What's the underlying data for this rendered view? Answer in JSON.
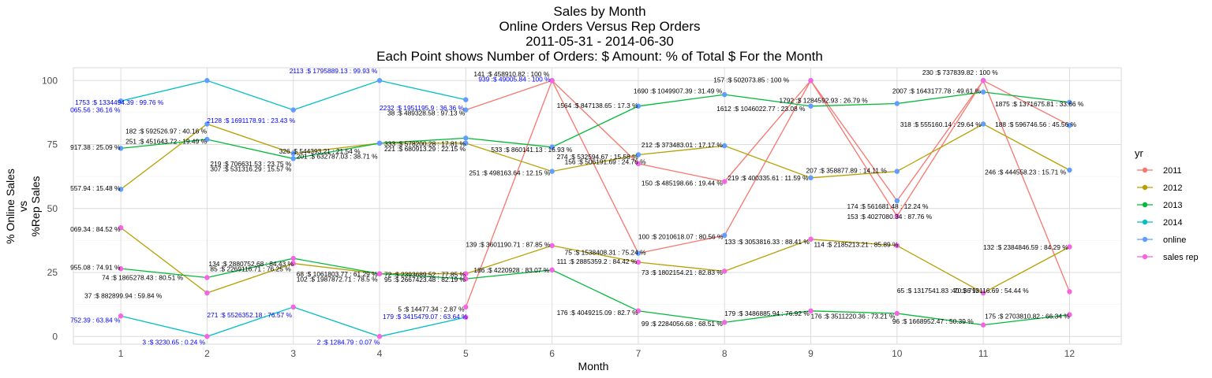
{
  "chart_data": {
    "type": "line",
    "title": [
      "Sales by Month",
      "Online Orders Versus Rep Orders",
      "2011-05-31  -  2014-06-30",
      "Each Point shows Number of Orders: $ Amount: % of Total $ For the Month"
    ],
    "xlabel": "Month",
    "ylabel": [
      "% Online Sales",
      "vs",
      "%Rep Sales"
    ],
    "xlim": [
      0.45,
      12.6
    ],
    "ylim": [
      -3,
      105
    ],
    "x_ticks": [
      1,
      2,
      3,
      4,
      5,
      6,
      7,
      8,
      9,
      10,
      11,
      12
    ],
    "y_ticks": [
      0,
      25,
      50,
      75,
      100
    ],
    "grid": true,
    "legend": {
      "position": "right",
      "title": "yr",
      "entries": [
        {
          "name": "2011",
          "color": "#f8766d"
        },
        {
          "name": "2012",
          "color": "#b79f00"
        },
        {
          "name": "2013",
          "color": "#00ba38"
        },
        {
          "name": "2014",
          "color": "#00bfc4"
        },
        {
          "name": "online",
          "color": "#619cff"
        },
        {
          "name": "sales rep",
          "color": "#f564e3"
        }
      ]
    },
    "series": [
      {
        "name": "2011",
        "color": "#f8766d",
        "x": [
          5,
          6,
          7,
          8,
          9,
          10,
          11,
          12
        ],
        "y": [
          88.5,
          100,
          32.5,
          39.5,
          100,
          53,
          100,
          82.5
        ]
      },
      {
        "name": "2011",
        "color": "#f8766d",
        "x": [
          5,
          6,
          7,
          8,
          9,
          10,
          11,
          12
        ],
        "y": [
          11.5,
          100,
          67.5,
          60.5,
          100,
          47,
          100,
          17.5
        ]
      },
      {
        "name": "2012",
        "color": "#b79f00",
        "x": [
          1,
          2,
          3,
          4,
          5,
          6,
          7,
          8,
          9,
          10,
          11,
          12
        ],
        "y": [
          57.5,
          83,
          71.5,
          75.5,
          75.5,
          64.5,
          71,
          74.5,
          62,
          64.5,
          83,
          65
        ]
      },
      {
        "name": "2012",
        "color": "#b79f00",
        "x": [
          1,
          2,
          3,
          4,
          5,
          6,
          7,
          8,
          9,
          10,
          11,
          12
        ],
        "y": [
          42.5,
          17,
          28.5,
          24.5,
          24.5,
          35.5,
          29,
          25.5,
          38,
          35.5,
          17,
          35
        ]
      },
      {
        "name": "2013",
        "color": "#00ba38",
        "x": [
          1,
          2,
          3,
          4,
          5,
          6,
          7,
          8,
          9,
          10,
          11,
          12
        ],
        "y": [
          73.5,
          77,
          69.5,
          75.5,
          77.5,
          74,
          90,
          94.5,
          90,
          91,
          95.5,
          91.5
        ]
      },
      {
        "name": "2013",
        "color": "#00ba38",
        "x": [
          1,
          2,
          3,
          4,
          5,
          6,
          7,
          8,
          9,
          10,
          11,
          12
        ],
        "y": [
          26.5,
          23,
          30.5,
          24.5,
          22.5,
          26,
          10,
          5.5,
          10,
          9,
          4.5,
          8.5
        ]
      },
      {
        "name": "2014",
        "color": "#00bfc4",
        "x": [
          1,
          2,
          3,
          4,
          5
        ],
        "y": [
          92,
          100,
          88.5,
          100,
          92.5
        ]
      },
      {
        "name": "2014",
        "color": "#00bfc4",
        "x": [
          1,
          2,
          3,
          4,
          5
        ],
        "y": [
          8,
          0,
          11.5,
          0,
          7.5
        ]
      }
    ],
    "point_labels": [
      {
        "x": 1,
        "y": 93,
        "text": "1753 :$ 1334494.39 : 99.76 %",
        "color": "#0000ff",
        "anchor": "start",
        "dx": -58,
        "dy": 8
      },
      {
        "x": 1,
        "y": 88,
        "text": "065.56 : 36.16 %",
        "color": "#0000ff",
        "anchor": "start",
        "dx": -64,
        "dy": 1
      },
      {
        "x": 1,
        "y": 74,
        "text": "917.38 : 25.09 %",
        "color": "#000000",
        "anchor": "start",
        "dx": -64,
        "dy": 3
      },
      {
        "x": 1,
        "y": 76,
        "text": "251 :$ 451643.72 : 19.49 %",
        "color": "#000000",
        "anchor": "start",
        "dx": 6,
        "dy": 2
      },
      {
        "x": 1,
        "y": 80,
        "text": "182 :$ 592526.97 : 40.16 %",
        "color": "#000000",
        "anchor": "start",
        "dx": 6,
        "dy": 2
      },
      {
        "x": 1,
        "y": 58,
        "text": "557.94 : 15.48 %",
        "color": "#000000",
        "anchor": "start",
        "dx": -64,
        "dy": 3
      },
      {
        "x": 1,
        "y": 42,
        "text": "069.34 : 84.52 %",
        "color": "#000000",
        "anchor": "start",
        "dx": -64,
        "dy": 3
      },
      {
        "x": 1,
        "y": 27,
        "text": "955.08 : 74.91 %",
        "color": "#000000",
        "anchor": "start",
        "dx": -64,
        "dy": 3
      },
      {
        "x": 1,
        "y": 23,
        "text": "74 :$ 1865278.43 : 80.51 %",
        "color": "#000000",
        "anchor": "start",
        "dx": -24,
        "dy": 3
      },
      {
        "x": 1,
        "y": 16,
        "text": "37 :$ 882899.94 : 59.84 %",
        "color": "#000000",
        "anchor": "start",
        "dx": -46,
        "dy": 3
      },
      {
        "x": 1,
        "y": 7,
        "text": "752.39 : 63.84 %",
        "color": "#0000ff",
        "anchor": "start",
        "dx": -64,
        "dy": 5
      },
      {
        "x": 2,
        "y": 0,
        "text": "3 :$ 3230.65 : 0.24 %",
        "color": "#0000ff",
        "anchor": "start",
        "dx": -82,
        "dy": 10
      },
      {
        "x": 2,
        "y": 86,
        "text": "2128 :$ 1691178.91 : 23.43 %",
        "color": "#0000ff",
        "anchor": "start",
        "dx": 0,
        "dy": 8
      },
      {
        "x": 2,
        "y": 69,
        "text": "219 :$ 706631.53 : 23.75 %",
        "color": "#000000",
        "anchor": "start",
        "dx": 4,
        "dy": 8
      },
      {
        "x": 2,
        "y": 67,
        "text": "307 :$ 531316.29 : 15.57 %",
        "color": "#000000",
        "anchor": "start",
        "dx": 4,
        "dy": 8
      },
      {
        "x": 2,
        "y": 30,
        "text": "134 :$ 2880752.68 : 84.43 %",
        "color": "#000000",
        "anchor": "start",
        "dx": 2,
        "dy": 8
      },
      {
        "x": 2,
        "y": 28,
        "text": "85 :$ 2269116.71 : 76.25 %",
        "color": "#000000",
        "anchor": "start",
        "dx": 4,
        "dy": 8
      },
      {
        "x": 2,
        "y": 10,
        "text": "271 :$ 5526352.18 : 76.57 %",
        "color": "#0000ff",
        "anchor": "start",
        "dx": 0,
        "dy": 8
      },
      {
        "x": 3,
        "y": 101,
        "text": "2113 :$ 1795889.13 : 99.93 %",
        "color": "#0000ff",
        "anchor": "start",
        "dx": -5,
        "dy": -6
      },
      {
        "x": 3,
        "y": 73,
        "text": "326 :$ 544393.21 : 21.54 %",
        "color": "#000000",
        "anchor": "start",
        "dx": -18,
        "dy": 5
      },
      {
        "x": 3,
        "y": 71,
        "text": "201 :$ 632787.03 : 38.71 %",
        "color": "#000000",
        "anchor": "start",
        "dx": 4,
        "dy": 5
      },
      {
        "x": 3,
        "y": 25,
        "text": "68 :$ 1061803.77 : 61.29 %",
        "color": "#000000",
        "anchor": "start",
        "dx": 4,
        "dy": 5
      },
      {
        "x": 3,
        "y": 23,
        "text": "102 :$ 1987872.71 : 78.5 %",
        "color": "#000000",
        "anchor": "start",
        "dx": 4,
        "dy": 5
      },
      {
        "x": 3,
        "y": 0,
        "text": "2 :$ 1284.79 : 0.07 %",
        "color": "#0000ff",
        "anchor": "start",
        "dx": 30,
        "dy": 10
      },
      {
        "x": 4,
        "y": 89,
        "text": "2232 :$ 1951195.9 : 36.36 %",
        "color": "#0000ff",
        "anchor": "start",
        "dx": 0,
        "dy": 2
      },
      {
        "x": 4,
        "y": 87,
        "text": "38 :$ 489328.58 : 97.13 %",
        "color": "#000000",
        "anchor": "start",
        "dx": 10,
        "dy": 2
      },
      {
        "x": 4,
        "y": 75,
        "text": "333 :$ 578200.28 : 17.81 %",
        "color": "#000000",
        "anchor": "start",
        "dx": 6,
        "dy": 2
      },
      {
        "x": 4,
        "y": 73,
        "text": "221 :$ 680913.29 : 22.15 %",
        "color": "#000000",
        "anchor": "start",
        "dx": 6,
        "dy": 2
      },
      {
        "x": 4,
        "y": 24,
        "text": "72 :$ 2393689.52 : 77.85 %",
        "color": "#000000",
        "anchor": "start",
        "dx": 6,
        "dy": 2
      },
      {
        "x": 4,
        "y": 22,
        "text": "95 :$ 2667423.48 : 82.19 %",
        "color": "#000000",
        "anchor": "start",
        "dx": 6,
        "dy": 2
      },
      {
        "x": 4,
        "y": 10,
        "text": "179 :$ 3415479.07 : 63.64 %",
        "color": "#0000ff",
        "anchor": "start",
        "dx": 4,
        "dy": 10
      },
      {
        "x": 5,
        "y": 101,
        "text": "141 :$ 458910.82 : 100 %",
        "color": "#000000",
        "anchor": "start",
        "dx": 10,
        "dy": -2
      },
      {
        "x": 5,
        "y": 99,
        "text": "939 :$ 49005.84 : 100 %",
        "color": "#0000ff",
        "anchor": "start",
        "dx": 16,
        "dy": -2
      },
      {
        "x": 5,
        "y": 73,
        "text": "533 :$ 860141.13 : 16.93 %",
        "color": "#000000",
        "anchor": "start",
        "dx": 32,
        "dy": 3
      },
      {
        "x": 5,
        "y": 64,
        "text": "251 :$ 498163.64 : 12.15 %",
        "color": "#000000",
        "anchor": "start",
        "dx": 4,
        "dy": 3
      },
      {
        "x": 5,
        "y": 36,
        "text": "139 :$ 3601190.71 : 87.85 %",
        "color": "#000000",
        "anchor": "start",
        "dx": 0,
        "dy": 3
      },
      {
        "x": 5,
        "y": 26,
        "text": "186 :$ 4220928 : 83.07 %",
        "color": "#000000",
        "anchor": "start",
        "dx": 10,
        "dy": 3
      },
      {
        "x": 5,
        "y": 11,
        "text": "5 :$ 14477.34 : 2.87 %",
        "color": "#000000",
        "anchor": "start",
        "dx": -86,
        "dy": 4
      },
      {
        "x": 6,
        "y": 90,
        "text": "1564 :$ 847138.65 : 17.3 %",
        "color": "#000000",
        "anchor": "start",
        "dx": 6,
        "dy": 2
      },
      {
        "x": 6,
        "y": 70,
        "text": "274 :$ 532594.67 : 15.58 %",
        "color": "#000000",
        "anchor": "start",
        "dx": 6,
        "dy": 2
      },
      {
        "x": 6,
        "y": 68,
        "text": "156 :$ 506191.69 : 24.76 %",
        "color": "#000000",
        "anchor": "start",
        "dx": 16,
        "dy": 2
      },
      {
        "x": 6,
        "y": 32,
        "text": "75 :$ 1538408.31 : 75.24 %",
        "color": "#000000",
        "anchor": "start",
        "dx": 16,
        "dy": 0
      },
      {
        "x": 6,
        "y": 29,
        "text": "111 :$ 2885359.2 : 84.42 %",
        "color": "#000000",
        "anchor": "start",
        "dx": 6,
        "dy": 2
      },
      {
        "x": 6,
        "y": 9,
        "text": "176 :$ 4049215.09 : 82.7 %",
        "color": "#000000",
        "anchor": "start",
        "dx": 6,
        "dy": 2
      },
      {
        "x": 7,
        "y": 95,
        "text": "1690 :$ 1049907.39 : 31.49 %",
        "color": "#000000",
        "anchor": "start",
        "dx": -6,
        "dy": 0
      },
      {
        "x": 7,
        "y": 74,
        "text": "212 :$ 373483.01 : 17.17 %",
        "color": "#000000",
        "anchor": "start",
        "dx": 4,
        "dy": 0
      },
      {
        "x": 7,
        "y": 60,
        "text": "150 :$ 485198.66 : 19.44 %",
        "color": "#000000",
        "anchor": "start",
        "dx": 4,
        "dy": 3
      },
      {
        "x": 7,
        "y": 39,
        "text": "100 :$ 2010618.07 : 80.56 %",
        "color": "#000000",
        "anchor": "start",
        "dx": 0,
        "dy": 3
      },
      {
        "x": 7,
        "y": 25,
        "text": "73 :$ 1802154.21 : 82.83 %",
        "color": "#000000",
        "anchor": "start",
        "dx": 4,
        "dy": 3
      },
      {
        "x": 7,
        "y": 5,
        "text": "99 :$ 2284056.68 : 68.51 %",
        "color": "#000000",
        "anchor": "start",
        "dx": 4,
        "dy": 3
      },
      {
        "x": 8,
        "y": 100,
        "text": "157 :$ 502073.85 : 100 %",
        "color": "#000000",
        "anchor": "start",
        "dx": -14,
        "dy": 2
      },
      {
        "x": 8,
        "y": 89,
        "text": "1612 :$ 1046022.77 : 23.08 %",
        "color": "#000000",
        "anchor": "start",
        "dx": -10,
        "dy": 3
      },
      {
        "x": 8,
        "y": 61,
        "text": "219 :$ 400335.61 : 11.59 %",
        "color": "#000000",
        "anchor": "start",
        "dx": 4,
        "dy": 0
      },
      {
        "x": 8,
        "y": 37,
        "text": "133 :$ 3053816.33 : 88.41 %",
        "color": "#000000",
        "anchor": "start",
        "dx": 0,
        "dy": 3
      },
      {
        "x": 8,
        "y": 9,
        "text": "179 :$ 3486885.94 : 76.92 %",
        "color": "#000000",
        "anchor": "start",
        "dx": 0,
        "dy": 3
      },
      {
        "x": 9,
        "y": 91,
        "text": "1792 :$ 1284592.93 : 26.79 %",
        "color": "#000000",
        "anchor": "start",
        "dx": -40,
        "dy": -1
      },
      {
        "x": 9,
        "y": 64,
        "text": "207 :$ 358877.89 : 14.11 %",
        "color": "#000000",
        "anchor": "start",
        "dx": -6,
        "dy": 0
      },
      {
        "x": 9,
        "y": 50,
        "text": "174 :$ 561681.48 : 12.24 %",
        "color": "#000000",
        "anchor": "start",
        "dx": 46,
        "dy": 0
      },
      {
        "x": 9,
        "y": 46,
        "text": "153 :$ 4027080.34 : 87.76 %",
        "color": "#000000",
        "anchor": "start",
        "dx": 46,
        "dy": 0
      },
      {
        "x": 9,
        "y": 35,
        "text": "114 :$ 2185213.21 : 85.89 %",
        "color": "#000000",
        "anchor": "start",
        "dx": 4,
        "dy": 0
      },
      {
        "x": 9,
        "y": 8,
        "text": "176 :$ 3511220.36 : 73.21 %",
        "color": "#000000",
        "anchor": "start",
        "dx": 0,
        "dy": 3
      },
      {
        "x": 10,
        "y": 101,
        "text": "230 :$ 737839.82 : 100 %",
        "color": "#000000",
        "anchor": "start",
        "dx": 32,
        "dy": -4
      },
      {
        "x": 10,
        "y": 95,
        "text": "2007 :$ 1643177.78 : 49.61 %",
        "color": "#000000",
        "anchor": "start",
        "dx": -6,
        "dy": 0
      },
      {
        "x": 10,
        "y": 82,
        "text": "318 :$ 555160.14 : 29.64 %",
        "color": "#000000",
        "anchor": "start",
        "dx": 4,
        "dy": 0
      },
      {
        "x": 10,
        "y": 17,
        "text": "65 :$ 1317541.83 : 70.36 %",
        "color": "#000000",
        "anchor": "start",
        "dx": 0,
        "dy": 0
      },
      {
        "x": 10,
        "y": 5,
        "text": "96 :$ 1668952.47 : 50.39 %",
        "color": "#000000",
        "anchor": "start",
        "dx": -6,
        "dy": 0
      },
      {
        "x": 11,
        "y": 90,
        "text": "1875 :$ 1371675.81 : 33.66 %",
        "color": "#000000",
        "anchor": "start",
        "dx": 15,
        "dy": 0
      },
      {
        "x": 11,
        "y": 82,
        "text": "188 :$ 596746.56 : 45.56 %",
        "color": "#000000",
        "anchor": "start",
        "dx": 15,
        "dy": 0
      },
      {
        "x": 11,
        "y": 64,
        "text": "246 :$ 444558.23 : 15.71 %",
        "color": "#000000",
        "anchor": "start",
        "dx": 2,
        "dy": 2
      },
      {
        "x": 11,
        "y": 34,
        "text": "132 :$ 2384846.59 : 84.29 %",
        "color": "#000000",
        "anchor": "start",
        "dx": 0,
        "dy": 0
      },
      {
        "x": 11,
        "y": 17,
        "text": "40 :$ 713116.69 : 54.44 %",
        "color": "#000000",
        "anchor": "start",
        "dx": -40,
        "dy": 0
      },
      {
        "x": 11,
        "y": 7,
        "text": "175 :$ 2703810.82 : 66.34 %",
        "color": "#000000",
        "anchor": "start",
        "dx": 2,
        "dy": 0
      }
    ]
  }
}
